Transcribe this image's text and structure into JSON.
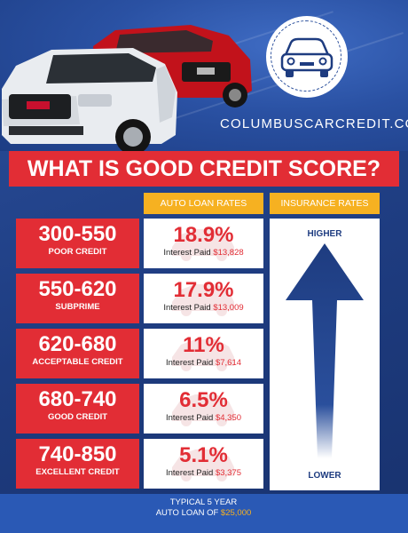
{
  "header": {
    "site": "COLUMBUSCARCREDIT.COM"
  },
  "title": "WHAT IS GOOD CREDIT SCORE?",
  "columns": {
    "auto": "AUTO LOAN RATES",
    "insurance": "INSURANCE RATES"
  },
  "rows": [
    {
      "range": "300-550",
      "label": "POOR CREDIT",
      "rate": "18.9%",
      "paid_label": "Interest Paid",
      "paid": "$13,828"
    },
    {
      "range": "550-620",
      "label": "SUBPRIME",
      "rate": "17.9%",
      "paid_label": "Interest Paid",
      "paid": "$13,009"
    },
    {
      "range": "620-680",
      "label": "ACCEPTABLE CREDIT",
      "rate": "11%",
      "paid_label": "Interest Paid",
      "paid": "$7,614"
    },
    {
      "range": "680-740",
      "label": "GOOD CREDIT",
      "rate": "6.5%",
      "paid_label": "Interest Paid",
      "paid": "$4,350"
    },
    {
      "range": "740-850",
      "label": "EXCELLENT CREDIT",
      "rate": "5.1%",
      "paid_label": "Interest Paid",
      "paid": "$3,375"
    }
  ],
  "insurance": {
    "higher": "HIGHER",
    "lower": "LOWER"
  },
  "footer": {
    "line1": "TYPICAL 5 YEAR",
    "line2": "AUTO LOAN OF",
    "amount": "$25,000"
  },
  "colors": {
    "background_blue": "#1e3c80",
    "accent_red": "#e22d35",
    "header_orange": "#f6b121",
    "white": "#ffffff"
  },
  "icons": [
    "car-logo-icon",
    "car-watermark-icon",
    "up-arrow-icon"
  ]
}
